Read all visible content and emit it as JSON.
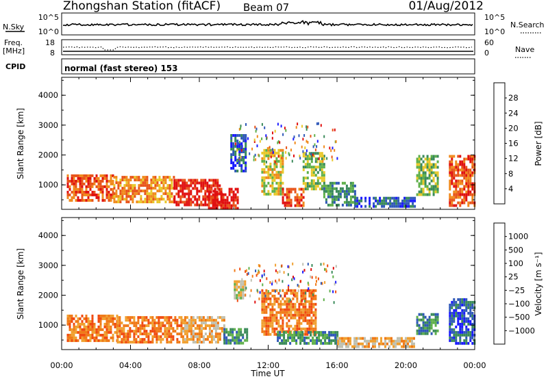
{
  "header": {
    "title": "Zhongshan Station (fitACF)",
    "beam": "Beam 07",
    "date": "01/Aug/2012"
  },
  "panels": {
    "nsky": {
      "left_label": "N.Sky",
      "left_ticks": [
        "10^5",
        "10^0"
      ],
      "right_ticks": [
        "10^5",
        "10^0"
      ],
      "right_label": "N.Search"
    },
    "freq": {
      "left_label_1": "Freq.",
      "left_label_2": "[MHz]",
      "left_ticks": [
        "18",
        "8"
      ],
      "right_ticks": [
        "60",
        "0"
      ],
      "right_label": "Nave"
    },
    "cpid": {
      "label": "CPID",
      "mode_text": "normal (fast stereo) 153"
    }
  },
  "chart_data": [
    {
      "type": "heatmap",
      "name": "power",
      "ylabel": "Slant Range [km]",
      "xlabel": "Time UT",
      "x_ticks": [
        "00:00",
        "04:00",
        "08:00",
        "12:00",
        "16:00",
        "20:00",
        "00:00"
      ],
      "y_ticks": [
        1000,
        2000,
        3000,
        4000
      ],
      "ylim": [
        180,
        4600
      ],
      "xlim": [
        0,
        24
      ],
      "colorbar": {
        "label": "Power [dB]",
        "ticks": [
          "4",
          "8",
          "12",
          "16",
          "20",
          "24",
          "28"
        ],
        "colors": [
          "#1a1aff",
          "#2f58b8",
          "#3a8a5a",
          "#5fb04a",
          "#e8c82a",
          "#f08a1c",
          "#e8541a",
          "#e01010"
        ]
      },
      "regions": [
        {
          "t": [
            0.3,
            3.0
          ],
          "r": [
            450,
            1350
          ],
          "level": 6
        },
        {
          "t": [
            3.0,
            6.5
          ],
          "r": [
            450,
            1300
          ],
          "level": 5
        },
        {
          "t": [
            6.5,
            9.3
          ],
          "r": [
            300,
            1200
          ],
          "level": 7
        },
        {
          "t": [
            8.5,
            10.2
          ],
          "r": [
            250,
            900
          ],
          "level": 7
        },
        {
          "t": [
            9.8,
            10.7
          ],
          "r": [
            1500,
            2700
          ],
          "level": 1
        },
        {
          "t": [
            11.6,
            12.8
          ],
          "r": [
            700,
            2200
          ],
          "level": 4
        },
        {
          "t": [
            12.8,
            14.0
          ],
          "r": [
            300,
            900
          ],
          "level": 6
        },
        {
          "t": [
            14.0,
            15.2
          ],
          "r": [
            900,
            2100
          ],
          "level": 3
        },
        {
          "t": [
            15.2,
            17.0
          ],
          "r": [
            350,
            1100
          ],
          "level": 2
        },
        {
          "t": [
            17.0,
            20.5
          ],
          "r": [
            250,
            600
          ],
          "level": 1
        },
        {
          "t": [
            20.6,
            21.8
          ],
          "r": [
            700,
            2000
          ],
          "level": 3
        },
        {
          "t": [
            22.5,
            24.0
          ],
          "r": [
            350,
            2000
          ],
          "level": 6
        }
      ]
    },
    {
      "type": "heatmap",
      "name": "velocity",
      "ylabel": "Slant Range [km]",
      "xlabel": "Time UT",
      "x_ticks": [
        "00:00",
        "04:00",
        "08:00",
        "12:00",
        "16:00",
        "20:00",
        "00:00"
      ],
      "y_ticks": [
        1000,
        2000,
        3000,
        4000
      ],
      "ylim": [
        180,
        4600
      ],
      "xlim": [
        0,
        24
      ],
      "colorbar": {
        "label": "Velocity [m s⁻¹]",
        "ticks": [
          "1000",
          "500",
          "100",
          "25",
          "−25",
          "−100",
          "−500",
          "−1000"
        ],
        "colors": [
          "#1a1aff",
          "#2f58b8",
          "#3a8a5a",
          "#5fb04a",
          "#c0c0b0",
          "#f0a030",
          "#f07a18",
          "#f04a10",
          "#e01010"
        ]
      },
      "regions": [
        {
          "t": [
            0.3,
            3.2
          ],
          "r": [
            450,
            1350
          ],
          "level": 6
        },
        {
          "t": [
            3.2,
            7.0
          ],
          "r": [
            450,
            1300
          ],
          "level": 6
        },
        {
          "t": [
            7.0,
            9.4
          ],
          "r": [
            450,
            1300
          ],
          "level": 5
        },
        {
          "t": [
            9.4,
            10.8
          ],
          "r": [
            400,
            900
          ],
          "level": 2
        },
        {
          "t": [
            10.0,
            10.6
          ],
          "r": [
            1900,
            2500
          ],
          "level": 4
        },
        {
          "t": [
            11.6,
            14.8
          ],
          "r": [
            700,
            2200
          ],
          "level": 6
        },
        {
          "t": [
            12.5,
            16.0
          ],
          "r": [
            350,
            800
          ],
          "level": 2
        },
        {
          "t": [
            16.0,
            20.5
          ],
          "r": [
            250,
            600
          ],
          "level": 5
        },
        {
          "t": [
            20.6,
            21.8
          ],
          "r": [
            700,
            1400
          ],
          "level": 2
        },
        {
          "t": [
            22.5,
            24.0
          ],
          "r": [
            350,
            1900
          ],
          "level": 1
        }
      ]
    }
  ]
}
